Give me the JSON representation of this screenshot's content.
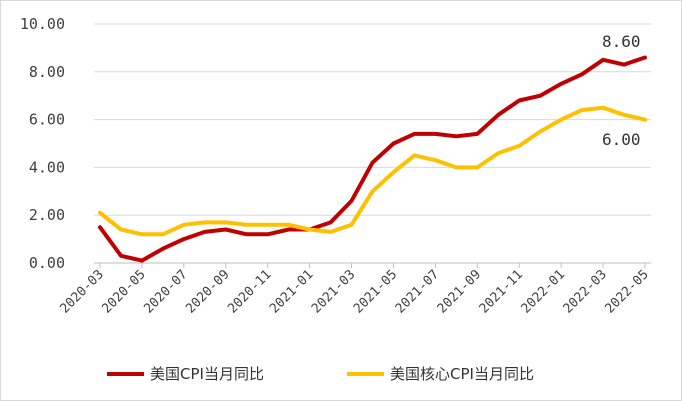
{
  "chart_data": {
    "type": "line",
    "x": [
      "2020-03",
      "2020-04",
      "2020-05",
      "2020-06",
      "2020-07",
      "2020-08",
      "2020-09",
      "2020-10",
      "2020-11",
      "2020-12",
      "2021-01",
      "2021-02",
      "2021-03",
      "2021-04",
      "2021-05",
      "2021-06",
      "2021-07",
      "2021-08",
      "2021-09",
      "2021-10",
      "2021-11",
      "2021-12",
      "2022-01",
      "2022-02",
      "2022-03",
      "2022-04",
      "2022-05"
    ],
    "x_tick_labels": [
      "2020-03",
      "2020-05",
      "2020-07",
      "2020-09",
      "2020-11",
      "2021-01",
      "2021-03",
      "2021-05",
      "2021-07",
      "2021-09",
      "2021-11",
      "2022-01",
      "2022-03",
      "2022-05"
    ],
    "y_tick_labels": [
      "0.00",
      "2.00",
      "4.00",
      "6.00",
      "8.00",
      "10.00"
    ],
    "ylim": [
      0,
      10
    ],
    "series": [
      {
        "name": "美国CPI当月同比",
        "color": "#c00000",
        "values": [
          1.5,
          0.3,
          0.1,
          0.6,
          1.0,
          1.3,
          1.4,
          1.2,
          1.2,
          1.4,
          1.4,
          1.7,
          2.6,
          4.2,
          5.0,
          5.4,
          5.4,
          5.3,
          5.4,
          6.2,
          6.8,
          7.0,
          7.5,
          7.9,
          8.5,
          8.3,
          8.6
        ]
      },
      {
        "name": "美国核心CPI当月同比",
        "color": "#ffc000",
        "values": [
          2.1,
          1.4,
          1.2,
          1.2,
          1.6,
          1.7,
          1.7,
          1.6,
          1.6,
          1.6,
          1.4,
          1.3,
          1.6,
          3.0,
          3.8,
          4.5,
          4.3,
          4.0,
          4.0,
          4.6,
          4.9,
          5.5,
          6.0,
          6.4,
          6.5,
          6.2,
          6.0
        ]
      }
    ],
    "annotations": [
      "8.60",
      "6.00"
    ],
    "grid": true,
    "legend_position": "bottom"
  }
}
